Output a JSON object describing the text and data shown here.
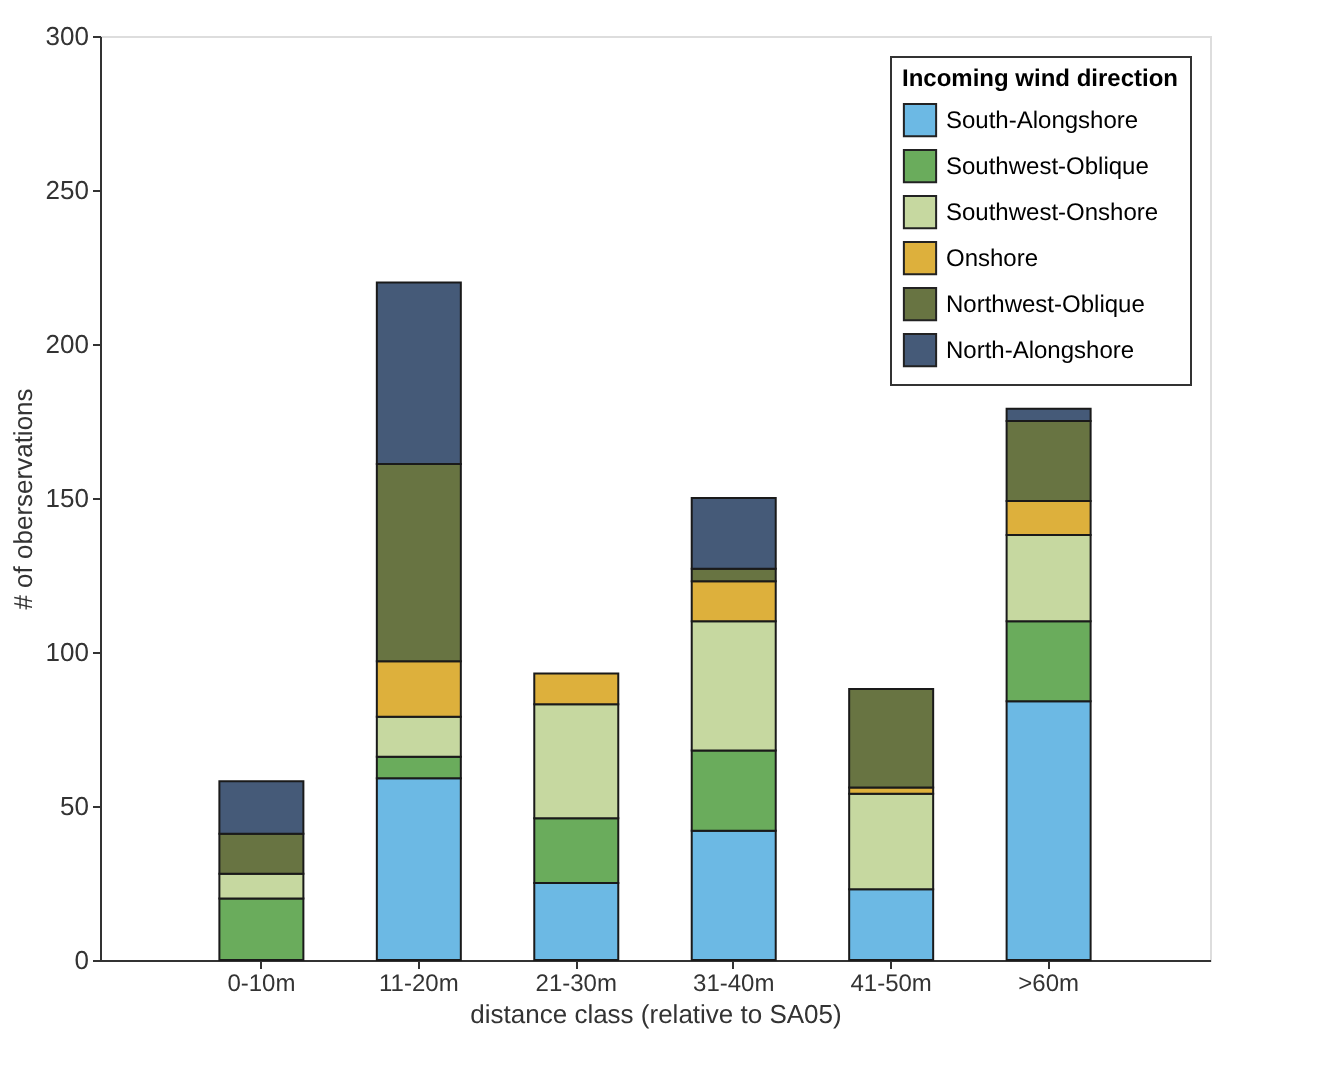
{
  "chart_data": {
    "type": "bar",
    "stacked": true,
    "xlabel": "distance class (relative to SA05)",
    "ylabel": "# of oberservations",
    "legend_title": "Incoming wind direction",
    "legend": "top right",
    "grid": false,
    "categories": [
      "0-10m",
      "11-20m",
      "21-30m",
      "31-40m",
      "41-50m",
      ">60m"
    ],
    "ylim": [
      0,
      300
    ],
    "yticks": [
      0,
      50,
      100,
      150,
      200,
      250,
      300
    ],
    "series": [
      {
        "name": "South-Alongshore",
        "color": "#6cb9e4",
        "values": [
          null,
          59,
          25,
          42,
          23,
          84
        ]
      },
      {
        "name": "Southwest-Oblique",
        "color": "#6aac5c",
        "values": [
          20,
          7,
          21,
          26,
          null,
          26
        ]
      },
      {
        "name": "Southwest-Onshore",
        "color": "#c6d8a0",
        "values": [
          8,
          13,
          37,
          42,
          31,
          28
        ]
      },
      {
        "name": "Onshore",
        "color": "#ddb03c",
        "values": [
          null,
          18,
          10,
          13,
          2,
          11
        ]
      },
      {
        "name": "Northwest-Oblique",
        "color": "#687442",
        "values": [
          13,
          64,
          null,
          4,
          32,
          26
        ]
      },
      {
        "name": "North-Alongshore",
        "color": "#455a78",
        "values": [
          17,
          59,
          null,
          23,
          null,
          4
        ]
      }
    ]
  }
}
